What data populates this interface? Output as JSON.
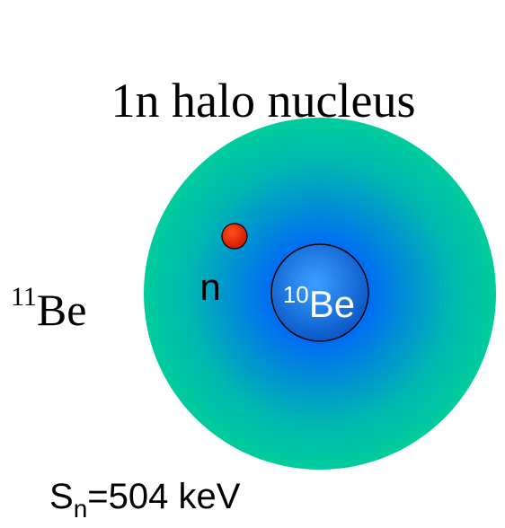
{
  "title": "1n halo nucleus",
  "nucleus": {
    "mass_number": "11",
    "symbol": "Be"
  },
  "core": {
    "mass_number": "10",
    "symbol": "Be"
  },
  "neutron": {
    "label": "n"
  },
  "separation_energy": {
    "symbol": "S",
    "subscript": "n",
    "text": "=504 keV"
  }
}
